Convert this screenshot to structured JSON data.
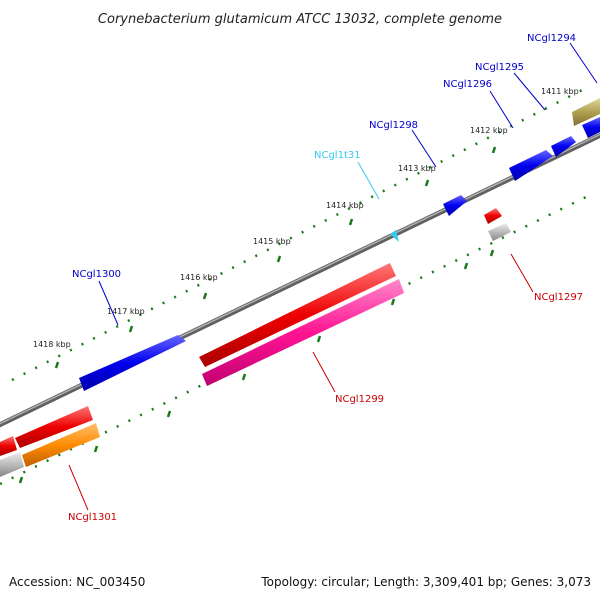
{
  "title": "Corynebacterium glutamicum ATCC 13032, complete genome",
  "footer": {
    "accession": "Accession: NC_003450",
    "stats": "Topology: circular; Length: 3,309,401 bp; Genes: 3,073"
  },
  "scale_labels": [
    "1411 kbp",
    "1412 kbp",
    "1413 kbp",
    "1414 kbp",
    "1415 kbp",
    "1416 kbp",
    "1417 kbp",
    "1418 kbp"
  ],
  "genes": {
    "forward": [
      "NCgl1294",
      "NCgl1295",
      "NCgl1296",
      "NCgl1298",
      "NCgl1t31",
      "NCgl1300"
    ],
    "reverse": [
      "NCgl1297",
      "NCgl1299",
      "NCgl1301"
    ]
  },
  "colors": {
    "forward_gene": "#0000ee",
    "trna": "#33ccee",
    "reverse_gene": "#ee0000",
    "mid_track": "#ff1493",
    "orange_track": "#ff8c00",
    "olive_track": "#b0a050",
    "gray_track": "#bbbbbb",
    "backbone": "#808080",
    "ticks": "#1a7a1a"
  }
}
